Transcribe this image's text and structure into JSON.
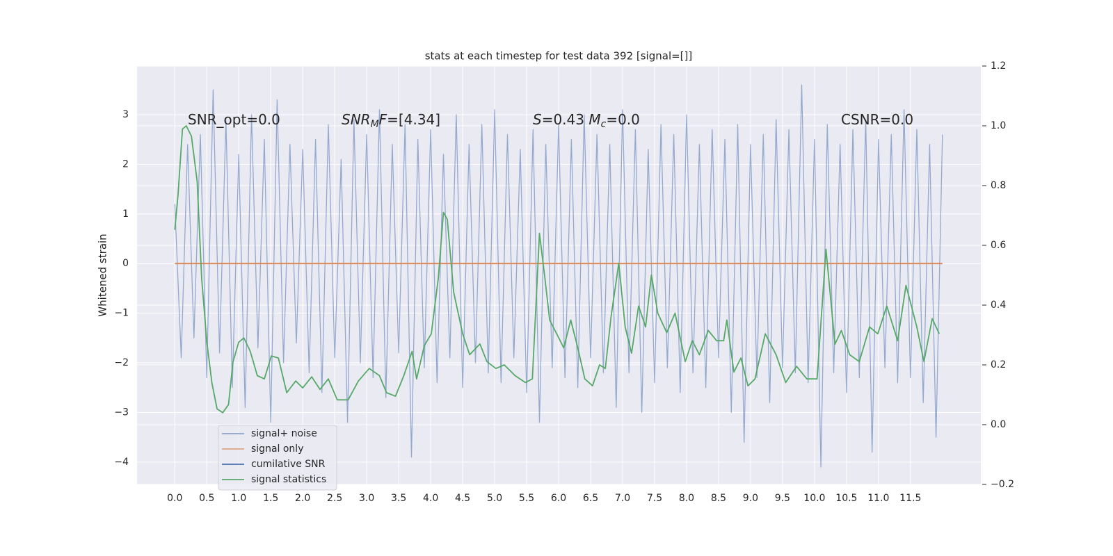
{
  "chart_data": {
    "type": "line",
    "title": "stats at each timestep for test data 392 [signal=[]]",
    "y_label": "Whitened strain",
    "xlim": [
      -0.59,
      12.6
    ],
    "ylim": [
      -4.45,
      3.98
    ],
    "y2lim": [
      -0.2,
      1.2
    ],
    "grid": true,
    "legend": "lower left",
    "xticks": [
      {
        "value": 0,
        "label": "0.0"
      },
      {
        "value": 0.5,
        "label": "0.5"
      },
      {
        "value": 1,
        "label": "1.0"
      },
      {
        "value": 1.5,
        "label": "1.5"
      },
      {
        "value": 2,
        "label": "2.0"
      },
      {
        "value": 2.5,
        "label": "2.5"
      },
      {
        "value": 3,
        "label": "3.0"
      },
      {
        "value": 3.5,
        "label": "3.5"
      },
      {
        "value": 4,
        "label": "4.0"
      },
      {
        "value": 4.5,
        "label": "4.5"
      },
      {
        "value": 5,
        "label": "5.0"
      },
      {
        "value": 5.5,
        "label": "5.5"
      },
      {
        "value": 6,
        "label": "6.0"
      },
      {
        "value": 6.5,
        "label": "6.5"
      },
      {
        "value": 7,
        "label": "7.0"
      },
      {
        "value": 7.5,
        "label": "7.5"
      },
      {
        "value": 8,
        "label": "8.0"
      },
      {
        "value": 8.5,
        "label": "8.5"
      },
      {
        "value": 9,
        "label": "9.0"
      },
      {
        "value": 9.5,
        "label": "9.5"
      },
      {
        "value": 10,
        "label": "10.0"
      },
      {
        "value": 10.5,
        "label": "10.5"
      },
      {
        "value": 11,
        "label": "11.0"
      },
      {
        "value": 11.5,
        "label": "11.5"
      }
    ],
    "yticks": [
      {
        "value": -4,
        "label": "−4"
      },
      {
        "value": -3,
        "label": "−3"
      },
      {
        "value": -2,
        "label": "−2"
      },
      {
        "value": -1,
        "label": "−1"
      },
      0,
      1,
      2,
      3
    ],
    "y2ticks": [
      {
        "value": -0.2,
        "label": "−0.2"
      },
      {
        "value": 0,
        "label": "0.0"
      },
      {
        "value": 0.2,
        "label": "0.2"
      },
      {
        "value": 0.4,
        "label": "0.4"
      },
      {
        "value": 0.6,
        "label": "0.6"
      },
      {
        "value": 0.8,
        "label": "0.8"
      },
      {
        "value": 1,
        "label": "1.0"
      },
      {
        "value": 1.2,
        "label": "1.2"
      }
    ],
    "annotations": [
      [
        {
          "text": "SNR_opt=0.0"
        }
      ],
      [
        {
          "text": "SNR",
          "italic": true
        },
        {
          "text": "M",
          "italic": true,
          "sub": true
        },
        {
          "text": "F",
          "italic": true
        },
        {
          "text": "=[4.34]"
        }
      ],
      [
        {
          "text": "S",
          "italic": true
        },
        {
          "text": "=0.43   "
        },
        {
          "text": "M",
          "italic": true
        },
        {
          "text": "c",
          "italic": true,
          "sub": true
        },
        {
          "text": "=0.0"
        }
      ],
      [
        {
          "text": "CSNR=0.0"
        }
      ]
    ],
    "series": [
      {
        "name": "signal+ noise",
        "color": "#4c72b0",
        "x": [
          0,
          0.1,
          0.2,
          0.3,
          0.4,
          0.5,
          0.6,
          0.7,
          0.8,
          0.9,
          1,
          1.1,
          1.2,
          1.3,
          1.4,
          1.5,
          1.6,
          1.7,
          1.8,
          1.9,
          2,
          2.1,
          2.2,
          2.3,
          2.4,
          2.5,
          2.6,
          2.7,
          2.8,
          2.9,
          3,
          3.1,
          3.2,
          3.3,
          3.4,
          3.5,
          3.6,
          3.7,
          3.8,
          3.9,
          4,
          4.1,
          4.2,
          4.3,
          4.4,
          4.5,
          4.6,
          4.7,
          4.8,
          4.9,
          5,
          5.1,
          5.2,
          5.3,
          5.4,
          5.5,
          5.6,
          5.7,
          5.8,
          5.9,
          6,
          6.1,
          6.2,
          6.3,
          6.4,
          6.5,
          6.6,
          6.7,
          6.8,
          6.9,
          7,
          7.1,
          7.2,
          7.3,
          7.4,
          7.5,
          7.6,
          7.7,
          7.8,
          7.9,
          8,
          8.1,
          8.2,
          8.3,
          8.4,
          8.5,
          8.6,
          8.7,
          8.8,
          8.9,
          9,
          9.1,
          9.2,
          9.3,
          9.4,
          9.5,
          9.6,
          9.7,
          9.8,
          9.9,
          10,
          10.1,
          10.2,
          10.3,
          10.4,
          10.5,
          10.6,
          10.7,
          10.8,
          10.9,
          11,
          11.1,
          11.2,
          11.3,
          11.4,
          11.5,
          11.6,
          11.7,
          11.8,
          11.9,
          12
        ],
        "values": [
          1.2,
          -1.9,
          2.4,
          -1.5,
          2.6,
          -2.3,
          3.5,
          -1.8,
          2.9,
          -2.5,
          2.2,
          -2.9,
          3.0,
          -1.7,
          2.5,
          -3.2,
          3.3,
          -2.0,
          2.4,
          -1.6,
          2.3,
          -2.2,
          2.5,
          -2.6,
          2.8,
          -1.9,
          2.1,
          -3.2,
          2.9,
          -2.0,
          2.6,
          -2.3,
          3.1,
          -2.7,
          2.4,
          -1.8,
          2.8,
          -3.9,
          2.5,
          -2.1,
          2.7,
          -2.4,
          2.2,
          -1.9,
          3.0,
          -2.5,
          2.4,
          -2.0,
          2.8,
          -2.2,
          3.1,
          -2.4,
          2.6,
          -1.9,
          2.3,
          -2.6,
          2.7,
          -3.2,
          2.4,
          -2.1,
          2.8,
          -2.3,
          2.5,
          -2.5,
          3.0,
          -1.9,
          2.6,
          -2.2,
          2.4,
          -2.9,
          3.1,
          -2.2,
          2.7,
          -3.0,
          2.3,
          -2.4,
          2.8,
          -2.1,
          2.6,
          -2.6,
          3.0,
          -2.2,
          2.4,
          -2.5,
          2.7,
          -1.9,
          2.5,
          -3.0,
          2.8,
          -3.6,
          2.4,
          -2.3,
          2.6,
          -2.8,
          2.9,
          -2.1,
          2.7,
          -2.2,
          3.6,
          -2.4,
          2.5,
          -4.1,
          2.8,
          -2.2,
          2.4,
          -2.6,
          2.7,
          -2.3,
          2.9,
          -3.8,
          2.5,
          -2.1,
          2.6,
          -2.4,
          3.1,
          -2.3,
          2.7,
          -2.8,
          2.4,
          -3.5,
          2.6
        ]
      },
      {
        "name": "signal only",
        "color": "#dd8452",
        "x": [
          0,
          12
        ],
        "values": [
          0,
          0
        ]
      },
      {
        "name": "cumilative SNR",
        "color": "#4c72b0",
        "x": [],
        "values": []
      },
      {
        "name": "signal statistics",
        "color": "#55a868",
        "axis": "y2",
        "x": [
          0,
          0.05,
          0.12,
          0.18,
          0.26,
          0.35,
          0.42,
          0.5,
          0.58,
          0.66,
          0.75,
          0.84,
          0.91,
          1.0,
          1.08,
          1.18,
          1.29,
          1.4,
          1.51,
          1.62,
          1.75,
          1.89,
          2.0,
          2.14,
          2.27,
          2.4,
          2.54,
          2.71,
          2.87,
          3.04,
          3.2,
          3.31,
          3.45,
          3.58,
          3.71,
          3.78,
          3.9,
          4.01,
          4.12,
          4.2,
          4.26,
          4.36,
          4.5,
          4.61,
          4.77,
          4.88,
          5.02,
          5.15,
          5.32,
          5.48,
          5.59,
          5.7,
          5.78,
          5.86,
          5.97,
          6.08,
          6.19,
          6.3,
          6.41,
          6.53,
          6.64,
          6.73,
          6.82,
          6.94,
          7.04,
          7.14,
          7.25,
          7.36,
          7.45,
          7.55,
          7.69,
          7.82,
          7.98,
          8.09,
          8.2,
          8.34,
          8.47,
          8.58,
          8.63,
          8.74,
          8.85,
          8.96,
          9.07,
          9.23,
          9.4,
          9.55,
          9.72,
          9.88,
          10.04,
          10.18,
          10.32,
          10.42,
          10.55,
          10.7,
          10.86,
          10.99,
          11.13,
          11.3,
          11.43,
          11.6,
          11.71,
          11.84,
          11.95
        ],
        "values": [
          0.652,
          0.768,
          0.989,
          1.0,
          0.965,
          0.815,
          0.49,
          0.28,
          0.14,
          0.053,
          0.04,
          0.067,
          0.21,
          0.276,
          0.29,
          0.245,
          0.164,
          0.153,
          0.23,
          0.223,
          0.107,
          0.146,
          0.123,
          0.16,
          0.118,
          0.153,
          0.083,
          0.083,
          0.146,
          0.188,
          0.164,
          0.107,
          0.095,
          0.164,
          0.245,
          0.153,
          0.264,
          0.304,
          0.49,
          0.71,
          0.687,
          0.443,
          0.304,
          0.234,
          0.27,
          0.211,
          0.188,
          0.2,
          0.164,
          0.141,
          0.153,
          0.64,
          0.501,
          0.35,
          0.304,
          0.257,
          0.35,
          0.257,
          0.153,
          0.13,
          0.2,
          0.188,
          0.362,
          0.54,
          0.327,
          0.239,
          0.397,
          0.327,
          0.501,
          0.373,
          0.308,
          0.373,
          0.211,
          0.281,
          0.234,
          0.315,
          0.281,
          0.281,
          0.35,
          0.176,
          0.223,
          0.13,
          0.153,
          0.304,
          0.234,
          0.141,
          0.195,
          0.153,
          0.153,
          0.587,
          0.269,
          0.315,
          0.234,
          0.211,
          0.327,
          0.304,
          0.397,
          0.281,
          0.466,
          0.327,
          0.211,
          0.355,
          0.304
        ]
      }
    ]
  }
}
